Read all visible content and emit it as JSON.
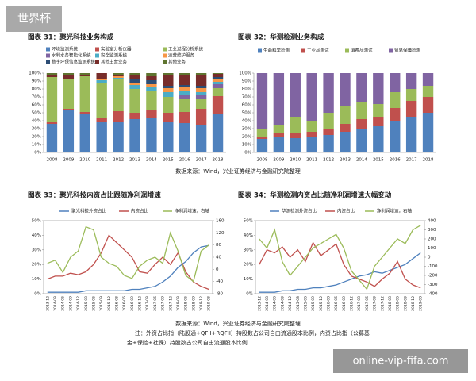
{
  "watermark": "世界杯",
  "site_label": "online-vip-fifa.com",
  "source_top": "数据来源：Wind，兴业证券经济与金融研究院整理",
  "source_bottom": "数据来源：Wind，兴业证券经济与金融研究院整理",
  "note_line1": "注：外资占比指（陆股通+QFII+RQFII）持股数占公司自由流通股本比例，内资占比指（公募基",
  "note_line2": "金+保险+社保）持股数占公司自由流通股本比例",
  "chart_data": [
    {
      "type": "bar",
      "stacked": true,
      "title": "图表 31：聚光科技业务构成",
      "categories": [
        "2008",
        "2009",
        "2010",
        "2011",
        "2012",
        "2013",
        "2014",
        "2015",
        "2016",
        "2017",
        "2018"
      ],
      "ylim": [
        0,
        100
      ],
      "yticks": [
        {
          "value": 0,
          "label": "0%"
        },
        {
          "value": 10,
          "label": "10%"
        },
        {
          "value": 20,
          "label": "20%"
        },
        {
          "value": 30,
          "label": "30%"
        },
        {
          "value": 40,
          "label": "40%"
        },
        {
          "value": 50,
          "label": "50%"
        },
        {
          "value": 60,
          "label": "60%"
        },
        {
          "value": 70,
          "label": "70%"
        },
        {
          "value": 80,
          "label": "80%"
        },
        {
          "value": 90,
          "label": "90%"
        },
        {
          "value": 100,
          "label": "100%"
        }
      ],
      "series": [
        {
          "name": "环境监测系统",
          "color": "#4f81bd",
          "values": [
            36,
            53,
            48,
            38,
            38,
            42,
            43,
            38,
            37,
            35,
            49
          ]
        },
        {
          "name": "实验室分析仪器",
          "color": "#c0504d",
          "values": [
            2,
            2,
            3,
            5,
            14,
            8,
            10,
            12,
            14,
            20,
            22
          ]
        },
        {
          "name": "工业过程分析系统",
          "color": "#9bbb59",
          "values": [
            57,
            38,
            45,
            45,
            40,
            30,
            24,
            20,
            16,
            12,
            10
          ]
        },
        {
          "name": "水利水务智能化系统",
          "color": "#8064a2",
          "values": [
            0,
            0,
            0,
            0,
            0,
            0,
            0,
            0,
            5,
            5,
            5
          ]
        },
        {
          "name": "安全监测系统",
          "color": "#4bacc6",
          "values": [
            0,
            0,
            0,
            3,
            2,
            5,
            5,
            6,
            5,
            4,
            3
          ]
        },
        {
          "name": "运营维护服务",
          "color": "#f79646",
          "values": [
            0,
            0,
            0,
            2,
            2,
            3,
            4,
            5,
            5,
            5,
            4
          ]
        },
        {
          "name": "数字环保信息监测系统",
          "color": "#2c4d75",
          "values": [
            0,
            0,
            0,
            0,
            0,
            5,
            5,
            3,
            3,
            3,
            2
          ]
        },
        {
          "name": "其他主营业务",
          "color": "#772c2a",
          "values": [
            3,
            5,
            2,
            7,
            2,
            5,
            5,
            14,
            13,
            14,
            4
          ]
        },
        {
          "name": "其他业务",
          "color": "#5f7530",
          "values": [
            2,
            2,
            2,
            0,
            2,
            2,
            4,
            2,
            2,
            2,
            1
          ]
        }
      ]
    },
    {
      "type": "bar",
      "stacked": true,
      "title": "图表 32：华测检测业务构成",
      "categories": [
        "2008",
        "2009",
        "2010",
        "2011",
        "2012",
        "2013",
        "2014",
        "2015",
        "2016",
        "2017",
        "2018"
      ],
      "ylim": [
        0,
        100
      ],
      "yticks": [
        {
          "value": 0,
          "label": "0%"
        },
        {
          "value": 10,
          "label": "10%"
        },
        {
          "value": 20,
          "label": "20%"
        },
        {
          "value": 30,
          "label": "30%"
        },
        {
          "value": 40,
          "label": "40%"
        },
        {
          "value": 50,
          "label": "50%"
        },
        {
          "value": 60,
          "label": "60%"
        },
        {
          "value": 70,
          "label": "70%"
        },
        {
          "value": 80,
          "label": "80%"
        },
        {
          "value": 90,
          "label": "90%"
        },
        {
          "value": 100,
          "label": "100%"
        }
      ],
      "series": [
        {
          "name": "生命科学检测",
          "color": "#4f81bd",
          "values": [
            17,
            20,
            18,
            20,
            22,
            26,
            30,
            33,
            40,
            45,
            50
          ]
        },
        {
          "name": "工业品测试",
          "color": "#c0504d",
          "values": [
            3,
            4,
            6,
            6,
            8,
            10,
            12,
            12,
            16,
            20,
            20
          ]
        },
        {
          "name": "消费品测试",
          "color": "#9bbb59",
          "values": [
            10,
            10,
            20,
            14,
            20,
            22,
            22,
            16,
            20,
            15,
            14
          ]
        },
        {
          "name": "贸易保障检测",
          "color": "#8064a2",
          "values": [
            70,
            66,
            56,
            60,
            50,
            42,
            36,
            39,
            24,
            20,
            16
          ]
        }
      ]
    },
    {
      "type": "line",
      "title": "图表 33：聚光科技内资占比跟随净利润增速",
      "categories": [
        "2013-12",
        "2014-03",
        "2014-06",
        "2014-09",
        "2014-12",
        "2015-03",
        "2015-06",
        "2015-09",
        "2015-12",
        "2016-03",
        "2016-06",
        "2016-09",
        "2016-12",
        "2017-03",
        "2017-06",
        "2017-09",
        "2017-12",
        "2018-03",
        "2018-06",
        "2018-09",
        "2018-12",
        "2019-03"
      ],
      "ylim": [
        0,
        50
      ],
      "yticks": [
        {
          "value": 0,
          "label": "0%"
        },
        {
          "value": 10,
          "label": "10%"
        },
        {
          "value": 20,
          "label": "20%"
        },
        {
          "value": 30,
          "label": "30%"
        },
        {
          "value": 40,
          "label": "40%"
        },
        {
          "value": 50,
          "label": "50%"
        }
      ],
      "y2lim": [
        -80,
        160
      ],
      "y2ticks": [
        -80,
        -40,
        0,
        40,
        80,
        120,
        160
      ],
      "series": [
        {
          "name": "聚光科技外资占比",
          "color": "#4f81bd",
          "values": [
            1,
            1,
            1,
            1,
            1,
            2,
            2,
            2,
            2,
            2,
            2,
            3,
            3,
            4,
            5,
            8,
            12,
            18,
            22,
            28,
            32,
            33
          ]
        },
        {
          "name": "内资占比",
          "color": "#c0504d",
          "values": [
            10,
            12,
            12,
            14,
            13,
            15,
            20,
            28,
            40,
            35,
            30,
            25,
            15,
            14,
            20,
            25,
            20,
            28,
            15,
            8,
            5,
            3
          ]
        },
        {
          "name": "净利润增速，右轴",
          "color": "#9bbb59",
          "axis": "y2",
          "values": [
            20,
            30,
            -10,
            40,
            60,
            140,
            130,
            40,
            20,
            10,
            -20,
            -30,
            10,
            30,
            40,
            20,
            120,
            60,
            -20,
            -40,
            60,
            80
          ]
        }
      ]
    },
    {
      "type": "line",
      "title": "图表 34：华测检测内资占比随净利润增速大幅变动",
      "categories": [
        "2013-12",
        "2014-03",
        "2014-06",
        "2014-09",
        "2014-12",
        "2015-03",
        "2015-06",
        "2015-09",
        "2015-12",
        "2016-03",
        "2016-06",
        "2016-09",
        "2016-12",
        "2017-03",
        "2017-06",
        "2017-09",
        "2017-12",
        "2018-03",
        "2018-06",
        "2018-09",
        "2018-12",
        "2019-03"
      ],
      "ylim": [
        0,
        50
      ],
      "yticks": [
        {
          "value": 0,
          "label": "0%"
        },
        {
          "value": 10,
          "label": "10%"
        },
        {
          "value": 20,
          "label": "20%"
        },
        {
          "value": 30,
          "label": "30%"
        },
        {
          "value": 40,
          "label": "40%"
        },
        {
          "value": 50,
          "label": "50%"
        }
      ],
      "y2lim": [
        -400,
        400
      ],
      "y2ticks": [
        -400,
        -300,
        -200,
        -100,
        0,
        100,
        200,
        300,
        400
      ],
      "series": [
        {
          "name": "华测检测外资占比",
          "color": "#4f81bd",
          "values": [
            1,
            1,
            1,
            2,
            2,
            3,
            3,
            4,
            4,
            5,
            6,
            8,
            10,
            12,
            13,
            15,
            14,
            16,
            18,
            20,
            24,
            28
          ]
        },
        {
          "name": "内资占比",
          "color": "#c0504d",
          "values": [
            20,
            30,
            28,
            32,
            25,
            30,
            22,
            35,
            26,
            30,
            34,
            20,
            12,
            10,
            8,
            5,
            10,
            14,
            22,
            10,
            6,
            4
          ]
        },
        {
          "name": "净利润增速，右轴",
          "color": "#9bbb59",
          "axis": "y2",
          "values": [
            200,
            100,
            300,
            -50,
            -200,
            -100,
            0,
            100,
            150,
            200,
            250,
            100,
            -150,
            -250,
            -350,
            -100,
            0,
            100,
            200,
            150,
            300,
            350
          ]
        }
      ]
    }
  ]
}
